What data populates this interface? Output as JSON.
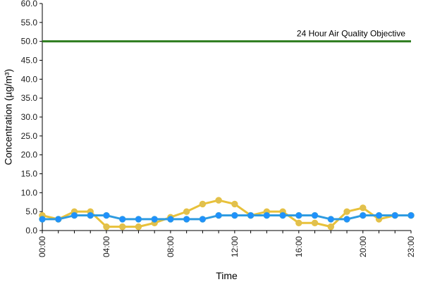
{
  "chart_data": {
    "type": "line",
    "xlabel": "Time",
    "ylabel": "Concentration (µg/m³)",
    "ylim": [
      0,
      60
    ],
    "y_ticks": [
      "0.0",
      "5.0",
      "10.0",
      "15.0",
      "20.0",
      "25.0",
      "30.0",
      "35.0",
      "40.0",
      "45.0",
      "50.0",
      "55.0",
      "60.0"
    ],
    "x_ticks": [
      {
        "hour": 0,
        "label": "00:00"
      },
      {
        "hour": 4,
        "label": "04:00"
      },
      {
        "hour": 8,
        "label": "08:00"
      },
      {
        "hour": 12,
        "label": "12:00"
      },
      {
        "hour": 16,
        "label": "16:00"
      },
      {
        "hour": 20,
        "label": "20:00"
      },
      {
        "hour": 23,
        "label": "23:00"
      }
    ],
    "x": [
      0,
      1,
      2,
      3,
      4,
      5,
      6,
      7,
      8,
      9,
      10,
      11,
      12,
      13,
      14,
      15,
      16,
      17,
      18,
      19,
      20,
      21,
      22,
      23
    ],
    "series": [
      {
        "color": "#E8C13A",
        "marker_fill": "#E0C050",
        "values": [
          4,
          3,
          5,
          5,
          1,
          1,
          1,
          2,
          3.5,
          5,
          7,
          8,
          7,
          4,
          5,
          5,
          2,
          2,
          1,
          5,
          6,
          3,
          4,
          4
        ]
      },
      {
        "color": "#2E9BE0",
        "marker_fill": "#1E90FF",
        "values": [
          3,
          3,
          4,
          4,
          4,
          3,
          3,
          3,
          3,
          3,
          3,
          4,
          4,
          4,
          4,
          4,
          4,
          4,
          3,
          3,
          4,
          4,
          4,
          4
        ]
      }
    ],
    "reference_line": {
      "value": 50,
      "label": "24 Hour Air Quality Objective",
      "color": "#2E7D1F"
    },
    "grid": false,
    "legend": "none"
  }
}
